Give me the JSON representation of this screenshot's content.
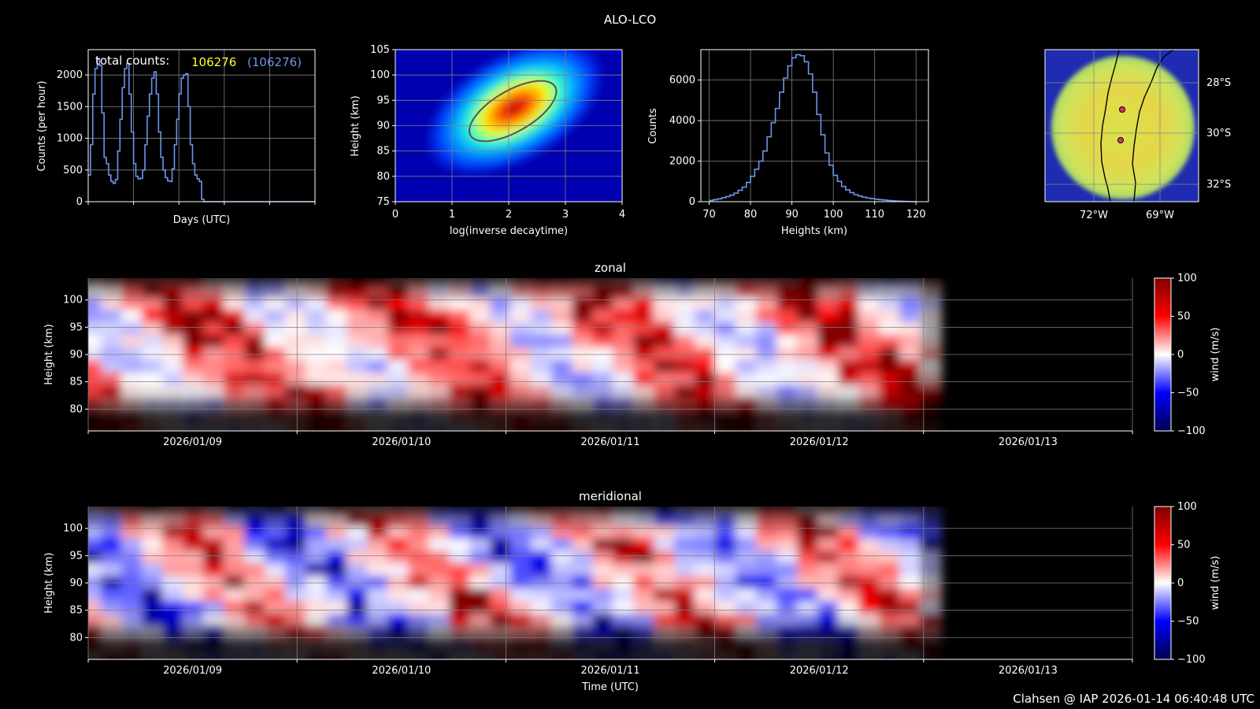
{
  "figure": {
    "title": "ALO-LCO",
    "footer": "Clahsen @ IAP 2026-01-14 06:40:48 UTC"
  },
  "colors": {
    "background": "#000000",
    "hist_line": "#6c95e8",
    "counts_yellow": "#ffff33",
    "counts_blue": "#6c95e8",
    "grid": "#808080"
  },
  "chart_data": [
    {
      "id": "counts-per-hour",
      "type": "line",
      "xlabel": "Days (UTC)",
      "ylabel": "Counts (per hour)",
      "ylim": [
        0,
        2400
      ],
      "yticks": [
        0,
        500,
        1000,
        1500,
        2000
      ],
      "annotation": {
        "label": "total counts:",
        "value": "106276",
        "value_paren": "(106276)"
      },
      "x_days": [
        0,
        0.05,
        0.1,
        0.15,
        0.2,
        0.25,
        0.3,
        0.35,
        0.4,
        0.45,
        0.5,
        0.55,
        0.6,
        0.65,
        0.7,
        0.75,
        0.8,
        0.85,
        0.9,
        0.95,
        1,
        1.05,
        1.1,
        1.15,
        1.2,
        1.25,
        1.3,
        1.35,
        1.4,
        1.45,
        1.5,
        1.55,
        1.6,
        1.65,
        1.7,
        1.75,
        1.8,
        1.85,
        1.9,
        1.95,
        2,
        2.05,
        2.1,
        2.15,
        2.2,
        2.25,
        2.3,
        2.35,
        2.4,
        2.45,
        2.5,
        2.55,
        2.6,
        2.65,
        2.7,
        2.75,
        2.8,
        2.85,
        2.9,
        2.95,
        3,
        3.05,
        3.1,
        3.15,
        3.2,
        3.25,
        3.3,
        3.35,
        3.4,
        3.45,
        3.5,
        3.55,
        3.6,
        3.65,
        3.7,
        3.75,
        3.8,
        3.85,
        3.9,
        3.95,
        4,
        4.5,
        5
      ],
      "values": [
        420,
        900,
        1700,
        2100,
        2250,
        2150,
        1400,
        700,
        600,
        420,
        320,
        290,
        350,
        800,
        1300,
        1800,
        2100,
        2180,
        1700,
        1100,
        600,
        400,
        360,
        370,
        500,
        900,
        1350,
        1700,
        1950,
        2050,
        1700,
        1100,
        700,
        500,
        380,
        330,
        320,
        520,
        900,
        1300,
        1700,
        1950,
        2000,
        2020,
        1500,
        900,
        600,
        420,
        360,
        320,
        40,
        0,
        0,
        0,
        0,
        0,
        0,
        0,
        0,
        0,
        0,
        0,
        0,
        0,
        0,
        0,
        0,
        0,
        0,
        0,
        0,
        0,
        0,
        0,
        0,
        0,
        0,
        0,
        0,
        0,
        0,
        0,
        0
      ],
      "xlim": [
        0,
        5
      ]
    },
    {
      "id": "height-vs-decaytime",
      "type": "heatmap",
      "xlabel": "log(inverse decaytime)",
      "ylabel": "Height (km)",
      "xlim": [
        0,
        4
      ],
      "ylim": [
        75,
        105
      ],
      "xticks": [
        0,
        1,
        2,
        3,
        4
      ],
      "yticks": [
        75,
        80,
        85,
        90,
        95,
        100,
        105
      ],
      "peak": {
        "x": 2.1,
        "y": 93.5
      }
    },
    {
      "id": "height-histogram",
      "type": "bar",
      "xlabel": "Heights (km)",
      "ylabel": "Counts",
      "xlim": [
        68,
        123
      ],
      "ylim": [
        0,
        7500
      ],
      "xticks": [
        70,
        80,
        90,
        100,
        110,
        120
      ],
      "yticks": [
        0,
        2000,
        4000,
        6000
      ],
      "bin_start": 70,
      "bin_width": 1,
      "values": [
        60,
        100,
        140,
        190,
        250,
        320,
        420,
        560,
        720,
        950,
        1250,
        1600,
        2000,
        2500,
        3200,
        3900,
        4600,
        5400,
        6100,
        6700,
        7100,
        7250,
        7200,
        6900,
        6300,
        5400,
        4300,
        3300,
        2400,
        1800,
        1300,
        1000,
        750,
        580,
        450,
        350,
        280,
        220,
        180,
        150,
        120,
        100,
        80,
        60,
        40,
        30,
        20,
        15,
        10,
        5
      ]
    },
    {
      "id": "station-map",
      "type": "heatmap",
      "lon_ticks": [
        "72°W",
        "69°W"
      ],
      "lat_ticks": [
        "28°S",
        "30°S",
        "32°S"
      ]
    },
    {
      "id": "zonal-wind",
      "type": "heatmap",
      "title": "zonal",
      "ylabel": "Height (km)",
      "yticks": [
        80,
        85,
        90,
        95,
        100
      ],
      "ylim": [
        76,
        104
      ],
      "x_dates": [
        "2026/01/09",
        "2026/01/10",
        "2026/01/11",
        "2026/01/12",
        "2026/01/13"
      ],
      "colorbar_label": "wind (m/s)",
      "colorbar_ticks": [
        100,
        50,
        0,
        -50,
        -100
      ],
      "data_end_day": 4.0,
      "sign": 1
    },
    {
      "id": "meridional-wind",
      "type": "heatmap",
      "title": "meridional",
      "ylabel": "Height (km)",
      "xlabel": "Time (UTC)",
      "yticks": [
        80,
        85,
        90,
        95,
        100
      ],
      "ylim": [
        76,
        104
      ],
      "x_dates": [
        "2026/01/09",
        "2026/01/10",
        "2026/01/11",
        "2026/01/12",
        "2026/01/13"
      ],
      "colorbar_label": "wind (m/s)",
      "colorbar_ticks": [
        100,
        50,
        0,
        -50,
        -100
      ],
      "data_end_day": 4.0,
      "sign": -1
    }
  ]
}
